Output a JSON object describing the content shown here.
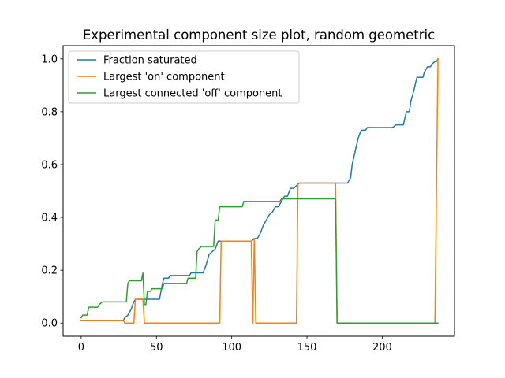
{
  "chart_data": {
    "type": "line",
    "title": "Experimental component size plot, random geometric",
    "xlabel": "",
    "ylabel": "",
    "xlim": [
      -12,
      248
    ],
    "ylim": [
      -0.05,
      1.05
    ],
    "xticks": [
      0,
      50,
      100,
      150,
      200
    ],
    "yticks": [
      0.0,
      0.2,
      0.4,
      0.6,
      0.8,
      1.0
    ],
    "xtick_labels": [
      "0",
      "50",
      "100",
      "150",
      "200"
    ],
    "ytick_labels": [
      "0.0",
      "0.2",
      "0.4",
      "0.6",
      "0.8",
      "1.0"
    ],
    "grid": false,
    "legend_position": "upper-left",
    "series": [
      {
        "name": "Fraction saturated",
        "color": "#1f77b4",
        "points": [
          [
            0,
            0.01
          ],
          [
            28,
            0.01
          ],
          [
            29,
            0.02
          ],
          [
            31,
            0.03
          ],
          [
            33,
            0.05
          ],
          [
            35,
            0.08
          ],
          [
            36,
            0.09
          ],
          [
            47,
            0.09
          ],
          [
            52,
            0.09
          ],
          [
            53,
            0.12
          ],
          [
            54,
            0.15
          ],
          [
            55,
            0.17
          ],
          [
            58,
            0.17
          ],
          [
            59,
            0.18
          ],
          [
            72,
            0.18
          ],
          [
            73,
            0.19
          ],
          [
            81,
            0.19
          ],
          [
            83,
            0.22
          ],
          [
            85,
            0.26
          ],
          [
            87,
            0.27
          ],
          [
            89,
            0.28
          ],
          [
            91,
            0.31
          ],
          [
            113,
            0.31
          ],
          [
            115,
            0.32
          ],
          [
            117,
            0.32
          ],
          [
            119,
            0.34
          ],
          [
            121,
            0.37
          ],
          [
            123,
            0.39
          ],
          [
            125,
            0.41
          ],
          [
            127,
            0.42
          ],
          [
            129,
            0.44
          ],
          [
            131,
            0.44
          ],
          [
            133,
            0.46
          ],
          [
            135,
            0.48
          ],
          [
            137,
            0.48
          ],
          [
            139,
            0.51
          ],
          [
            141,
            0.51
          ],
          [
            143,
            0.52
          ],
          [
            145,
            0.53
          ],
          [
            177,
            0.53
          ],
          [
            179,
            0.55
          ],
          [
            180,
            0.6
          ],
          [
            182,
            0.65
          ],
          [
            184,
            0.7
          ],
          [
            186,
            0.73
          ],
          [
            189,
            0.73
          ],
          [
            190,
            0.74
          ],
          [
            207,
            0.74
          ],
          [
            209,
            0.75
          ],
          [
            214,
            0.75
          ],
          [
            216,
            0.8
          ],
          [
            218,
            0.8
          ],
          [
            219,
            0.84
          ],
          [
            221,
            0.88
          ],
          [
            223,
            0.93
          ],
          [
            227,
            0.93
          ],
          [
            228,
            0.95
          ],
          [
            230,
            0.97
          ],
          [
            232,
            0.97
          ],
          [
            233,
            0.98
          ],
          [
            235,
            0.99
          ],
          [
            236,
            0.99
          ],
          [
            237,
            1.0
          ]
        ]
      },
      {
        "name": "Largest 'on' component",
        "color": "#ff7f0e",
        "points": [
          [
            0,
            0.01
          ],
          [
            28,
            0.01
          ],
          [
            29,
            0.0
          ],
          [
            35,
            0.0
          ],
          [
            36,
            0.09
          ],
          [
            41,
            0.09
          ],
          [
            42,
            0.0
          ],
          [
            92,
            0.0
          ],
          [
            93,
            0.31
          ],
          [
            113,
            0.31
          ],
          [
            114,
            0.0
          ],
          [
            115,
            0.32
          ],
          [
            116,
            0.0
          ],
          [
            143,
            0.0
          ],
          [
            144,
            0.53
          ],
          [
            169,
            0.53
          ],
          [
            170,
            0.0
          ],
          [
            235,
            0.0
          ],
          [
            237,
            1.0
          ]
        ]
      },
      {
        "name": "Largest connected 'off' component",
        "color": "#2ca02c",
        "points": [
          [
            0,
            0.02
          ],
          [
            1,
            0.03
          ],
          [
            4,
            0.03
          ],
          [
            5,
            0.06
          ],
          [
            8,
            0.06
          ],
          [
            11,
            0.06
          ],
          [
            12,
            0.07
          ],
          [
            14,
            0.08
          ],
          [
            30,
            0.08
          ],
          [
            31,
            0.15
          ],
          [
            32,
            0.16
          ],
          [
            40,
            0.16
          ],
          [
            41,
            0.19
          ],
          [
            42,
            0.07
          ],
          [
            43,
            0.07
          ],
          [
            44,
            0.12
          ],
          [
            46,
            0.12
          ],
          [
            47,
            0.13
          ],
          [
            54,
            0.13
          ],
          [
            55,
            0.15
          ],
          [
            70,
            0.15
          ],
          [
            71,
            0.17
          ],
          [
            76,
            0.17
          ],
          [
            77,
            0.27
          ],
          [
            78,
            0.28
          ],
          [
            80,
            0.29
          ],
          [
            88,
            0.29
          ],
          [
            89,
            0.39
          ],
          [
            91,
            0.39
          ],
          [
            92,
            0.44
          ],
          [
            107,
            0.44
          ],
          [
            108,
            0.46
          ],
          [
            132,
            0.46
          ],
          [
            133,
            0.47
          ],
          [
            169,
            0.47
          ],
          [
            170,
            0.0
          ],
          [
            237,
            0.0
          ]
        ]
      }
    ]
  }
}
